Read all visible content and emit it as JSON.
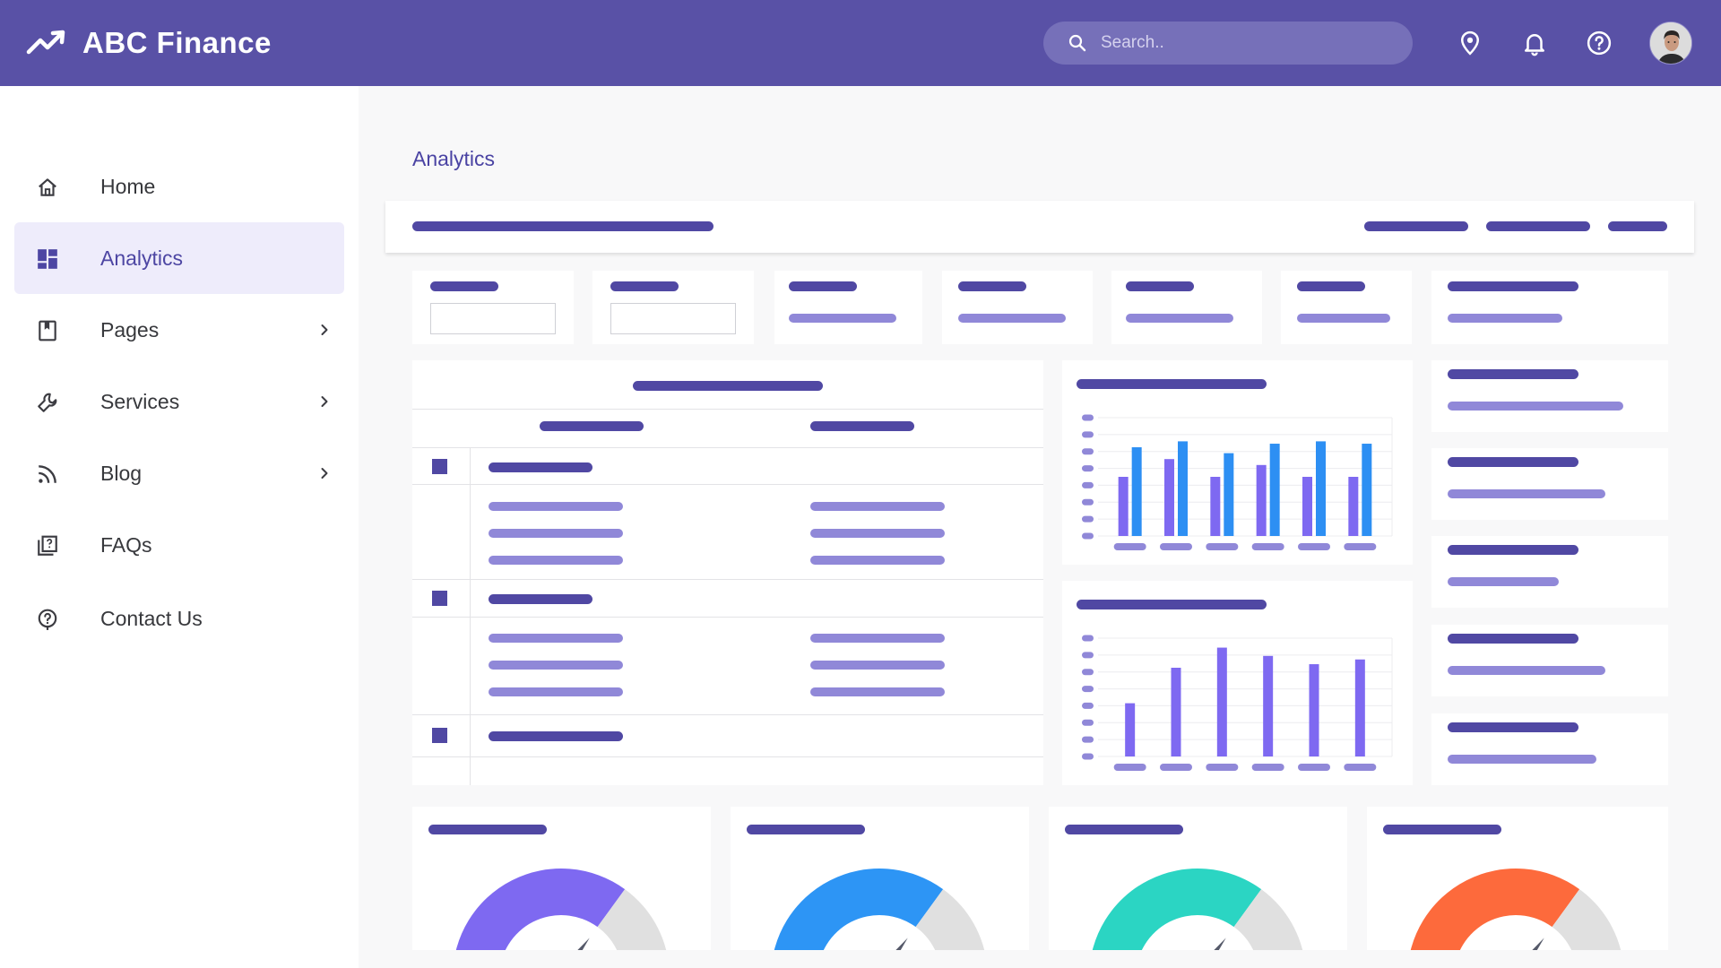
{
  "header": {
    "brand_name": "ABC Finance",
    "search_placeholder": "Search..",
    "icons": [
      "trending-up-icon",
      "search-icon",
      "location-pin-icon",
      "bell-icon",
      "help-circle-icon",
      "avatar"
    ]
  },
  "sidebar": {
    "items": [
      {
        "label": "Home",
        "icon": "home-icon",
        "chevron": false,
        "active": false
      },
      {
        "label": "Analytics",
        "icon": "dashboard-icon",
        "chevron": false,
        "active": true
      },
      {
        "label": "Pages",
        "icon": "bookmark-book-icon",
        "chevron": true,
        "active": false
      },
      {
        "label": "Services",
        "icon": "wrench-icon",
        "chevron": true,
        "active": false
      },
      {
        "label": "Blog",
        "icon": "rss-icon",
        "chevron": true,
        "active": false
      },
      {
        "label": "FAQs",
        "icon": "help-book-icon",
        "chevron": false,
        "active": false
      },
      {
        "label": "Contact Us",
        "icon": "help-circle-icon",
        "chevron": false,
        "active": false
      }
    ]
  },
  "main": {
    "page_title": "Analytics"
  },
  "colors": {
    "header": "#5951a6",
    "accent": "#5048a3",
    "accent_light": "#9088d8",
    "bar_purple": "#7e69f1",
    "bar_blue": "#2d8ff3",
    "gauge_purple": "#7e69f1",
    "gauge_blue": "#2d95f5",
    "gauge_teal": "#2bd5c3",
    "gauge_orange": "#fd6a3c",
    "gauge_track": "#e0e0e0"
  },
  "chart_data": [
    {
      "type": "bar",
      "series": [
        {
          "values": [
            5,
            6.5,
            5,
            6,
            5,
            5
          ]
        },
        {
          "values": [
            7.5,
            8,
            7,
            7.8,
            8,
            7.8
          ]
        }
      ],
      "ylim": [
        0,
        10
      ],
      "grid": true
    },
    {
      "type": "bar",
      "series": [
        {
          "values": [
            4.5,
            7.5,
            9.2,
            8.5,
            7.8,
            8.2
          ]
        }
      ],
      "ylim": [
        0,
        10
      ],
      "grid": true
    },
    {
      "type": "pie",
      "values": [
        70,
        30
      ]
    },
    {
      "type": "pie",
      "values": [
        70,
        30
      ]
    },
    {
      "type": "pie",
      "values": [
        70,
        30
      ]
    },
    {
      "type": "pie",
      "values": [
        70,
        30
      ]
    }
  ]
}
